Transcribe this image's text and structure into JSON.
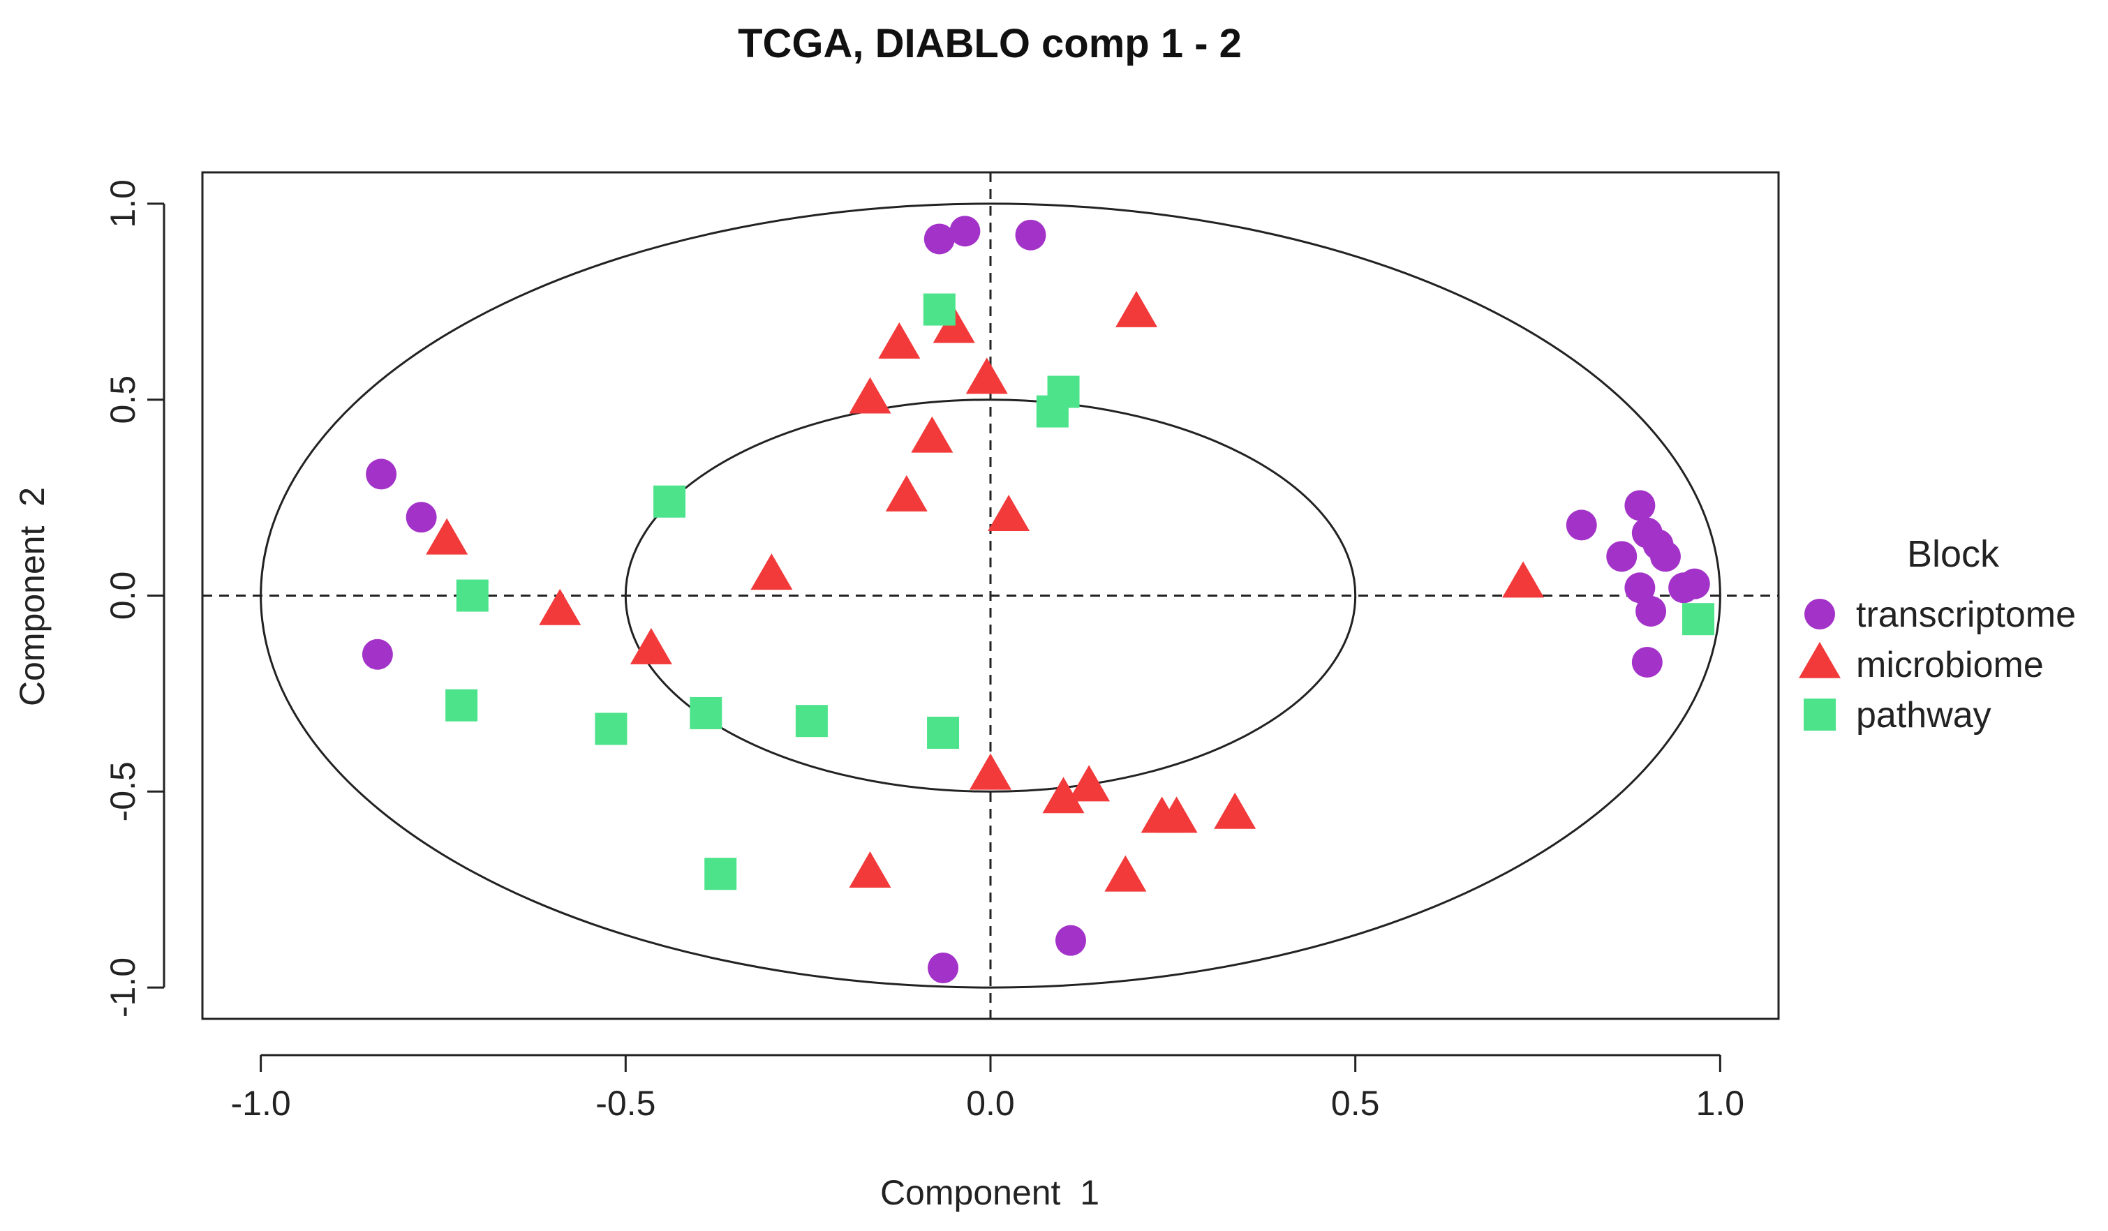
{
  "chart_data": {
    "type": "scatter",
    "title": "TCGA, DIABLO comp 1 - 2",
    "xlabel": "Component  1",
    "ylabel": "Component  2",
    "xlim": [
      -1.08,
      1.08
    ],
    "ylim": [
      -1.08,
      1.08
    ],
    "xticks": [
      -1.0,
      -0.5,
      0.0,
      0.5,
      1.0
    ],
    "xtick_labels": [
      "-1.0",
      "-0.5",
      "0.0",
      "0.5",
      "1.0"
    ],
    "yticks": [
      -1.0,
      -0.5,
      0.0,
      0.5,
      1.0
    ],
    "ytick_labels": [
      "-1.0",
      "-0.5",
      "0.0",
      "0.5",
      "1.0"
    ],
    "circles": [
      1.0,
      0.5
    ],
    "reference_lines": {
      "x": 0,
      "y": 0,
      "style": "dashed"
    },
    "legend": {
      "title": "Block",
      "position": "right"
    },
    "series": [
      {
        "name": "transcriptome",
        "marker": "circle",
        "color": "#A333C8",
        "points": [
          [
            -0.07,
            0.91
          ],
          [
            -0.035,
            0.93
          ],
          [
            0.055,
            0.92
          ],
          [
            -0.835,
            0.31
          ],
          [
            -0.78,
            0.2
          ],
          [
            -0.84,
            -0.15
          ],
          [
            0.81,
            0.18
          ],
          [
            0.89,
            0.23
          ],
          [
            0.9,
            0.16
          ],
          [
            0.865,
            0.1
          ],
          [
            0.915,
            0.13
          ],
          [
            0.925,
            0.1
          ],
          [
            0.89,
            0.02
          ],
          [
            0.905,
            -0.04
          ],
          [
            0.95,
            0.02
          ],
          [
            0.965,
            0.03
          ],
          [
            0.9,
            -0.17
          ],
          [
            -0.065,
            -0.95
          ],
          [
            0.11,
            -0.88
          ]
        ]
      },
      {
        "name": "microbiome",
        "marker": "triangle",
        "color": "#F23A3A",
        "points": [
          [
            0.2,
            0.72
          ],
          [
            -0.125,
            0.64
          ],
          [
            -0.05,
            0.68
          ],
          [
            -0.005,
            0.55
          ],
          [
            -0.165,
            0.5
          ],
          [
            -0.08,
            0.4
          ],
          [
            -0.115,
            0.25
          ],
          [
            0.025,
            0.2
          ],
          [
            -0.3,
            0.05
          ],
          [
            -0.745,
            0.14
          ],
          [
            -0.59,
            -0.04
          ],
          [
            -0.465,
            -0.14
          ],
          [
            0.73,
            0.03
          ],
          [
            0.0,
            -0.46
          ],
          [
            0.1,
            -0.52
          ],
          [
            0.135,
            -0.49
          ],
          [
            0.235,
            -0.57
          ],
          [
            0.255,
            -0.57
          ],
          [
            0.335,
            -0.56
          ],
          [
            -0.165,
            -0.71
          ],
          [
            0.185,
            -0.72
          ]
        ]
      },
      {
        "name": "pathway",
        "marker": "square",
        "color": "#4DE38B",
        "points": [
          [
            -0.07,
            0.73
          ],
          [
            0.1,
            0.52
          ],
          [
            0.085,
            0.47
          ],
          [
            -0.44,
            0.24
          ],
          [
            -0.71,
            0.0
          ],
          [
            -0.725,
            -0.28
          ],
          [
            -0.52,
            -0.34
          ],
          [
            -0.39,
            -0.3
          ],
          [
            -0.245,
            -0.32
          ],
          [
            -0.065,
            -0.35
          ],
          [
            -0.37,
            -0.71
          ],
          [
            0.97,
            -0.06
          ]
        ]
      }
    ]
  }
}
